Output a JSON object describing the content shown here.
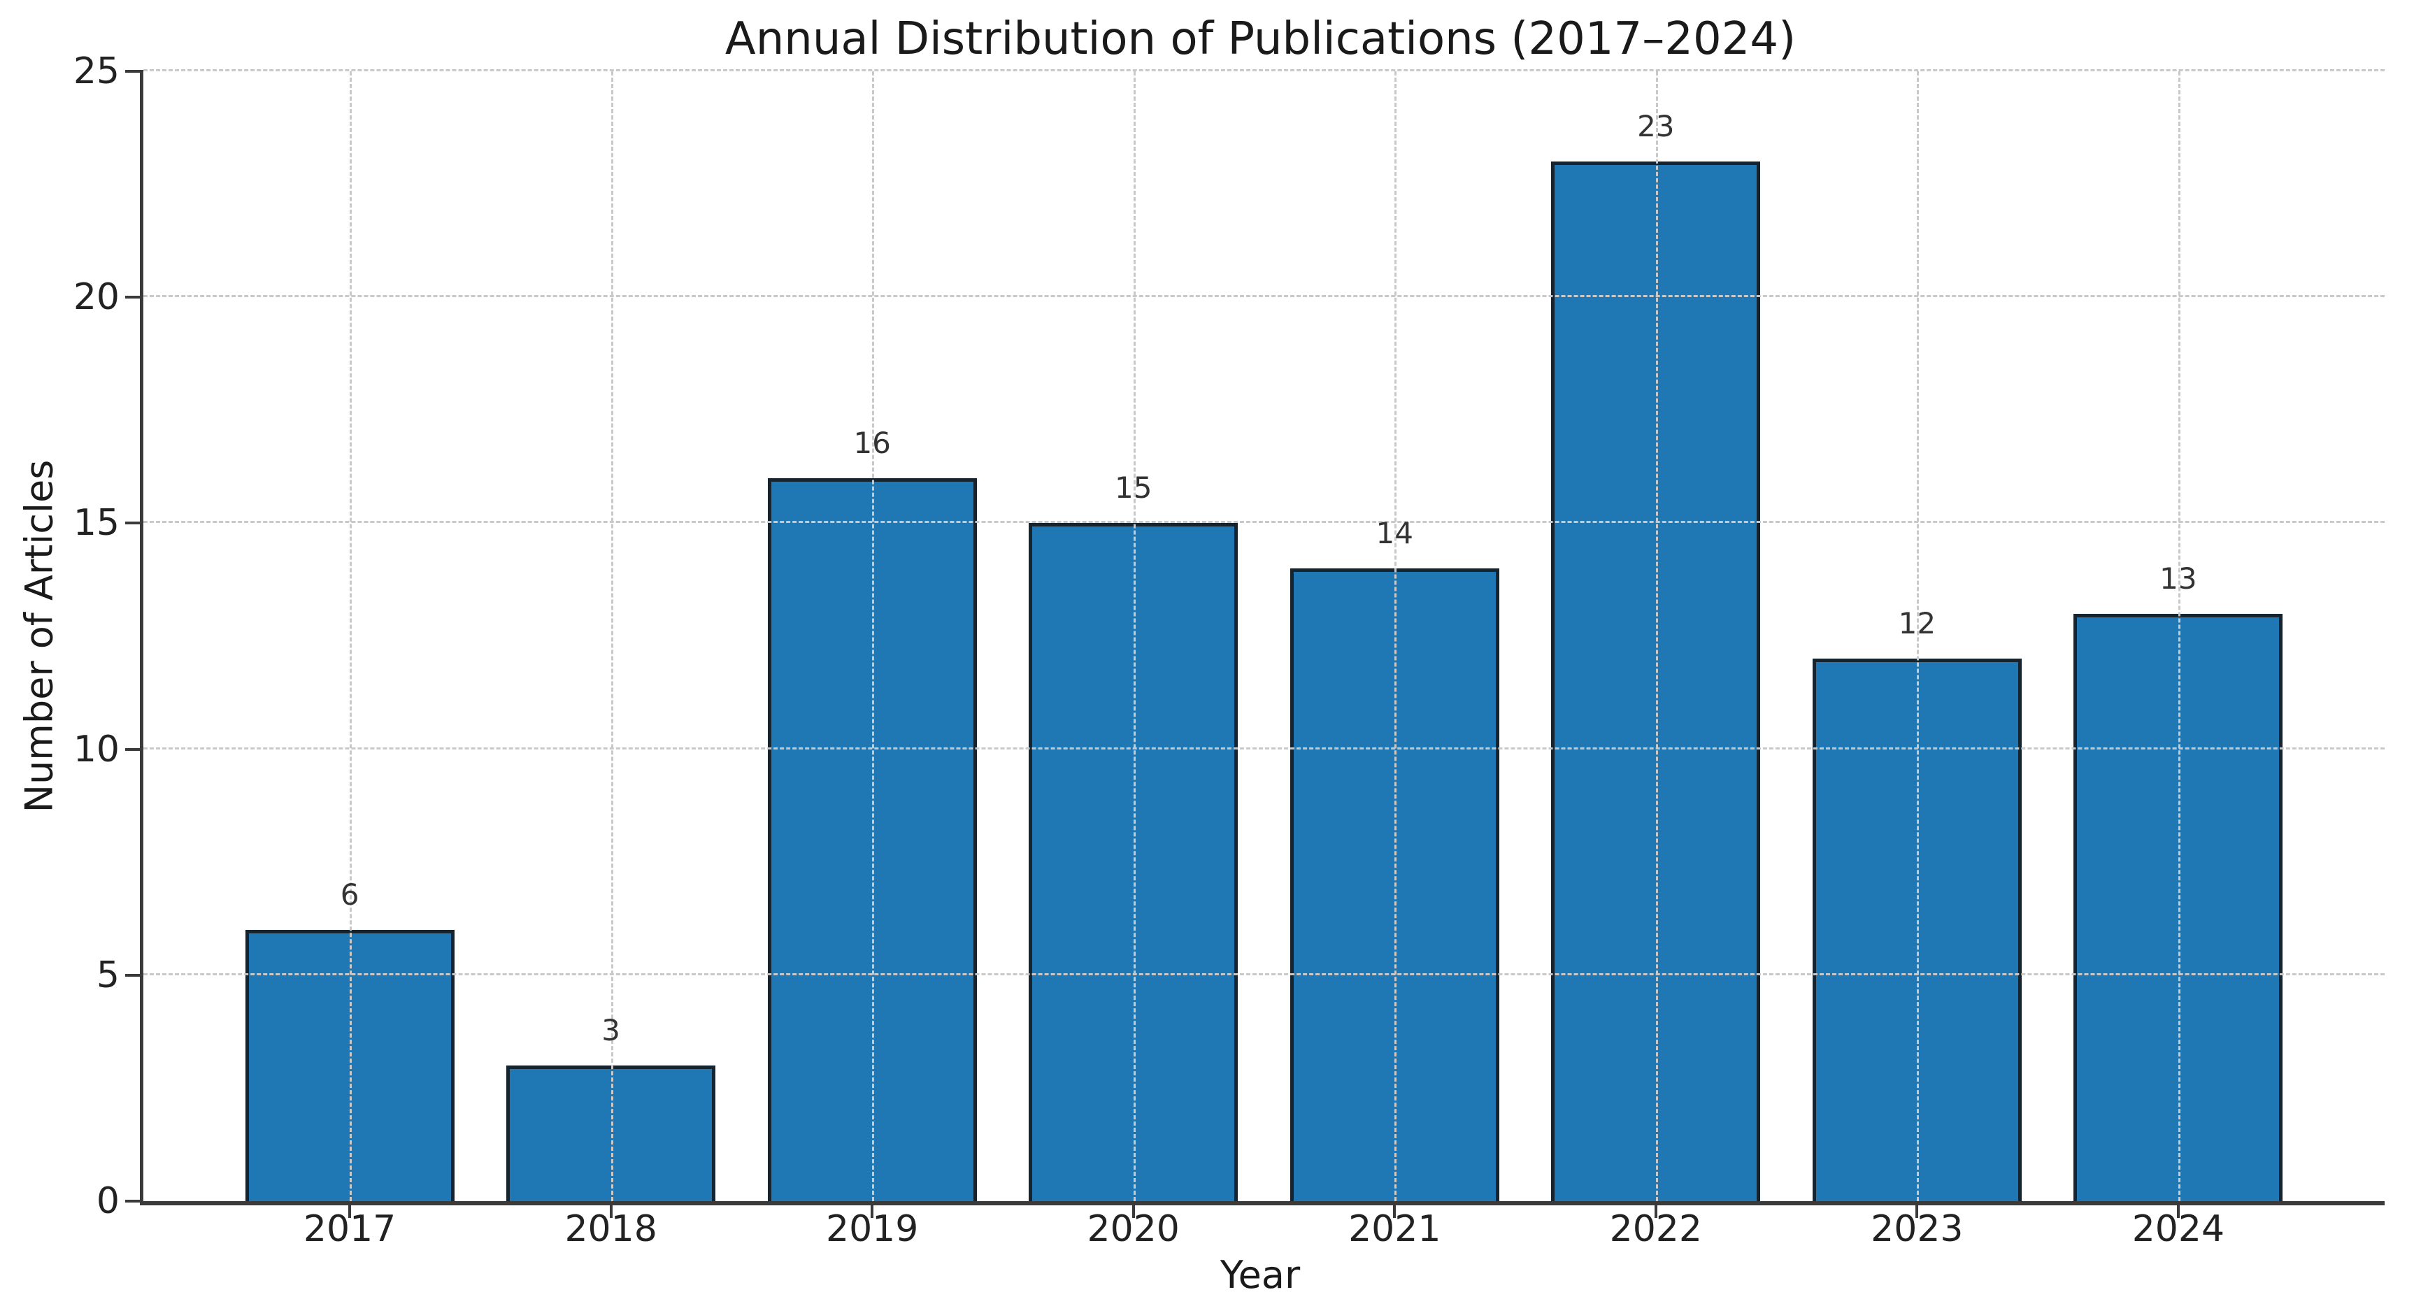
{
  "chart_data": {
    "type": "bar",
    "title": "Annual Distribution of Publications (2017–2024)",
    "xlabel": "Year",
    "ylabel": "Number of Articles",
    "categories": [
      "2017",
      "2018",
      "2019",
      "2020",
      "2021",
      "2022",
      "2023",
      "2024"
    ],
    "values": [
      6,
      3,
      16,
      15,
      14,
      23,
      12,
      13
    ],
    "value_labels": [
      "6",
      "3",
      "16",
      "15",
      "14",
      "23",
      "12",
      "13"
    ],
    "ylim": [
      0,
      25
    ],
    "yticks": [
      0,
      5,
      10,
      15,
      20,
      25
    ],
    "xlim": [
      -0.79,
      7.79
    ],
    "bar_width_data_units": 0.8,
    "grid": {
      "style": "dashed",
      "axes": "both",
      "drawn_above_bars": true
    },
    "legend": "none",
    "colors": {
      "bar_fill": "#1f77b4",
      "bar_edge": "#16242f",
      "grid_line": "#c9c9c9",
      "spine": "#3a3a3a",
      "text": "#222222"
    }
  }
}
